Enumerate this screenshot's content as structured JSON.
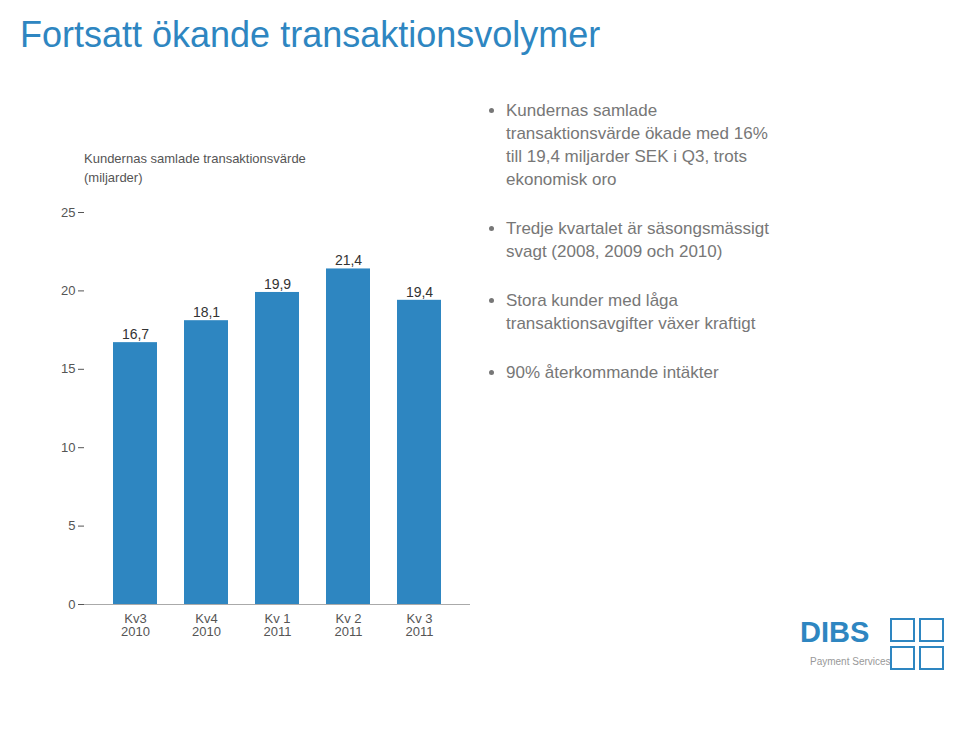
{
  "chart_data": {
    "type": "bar",
    "title": "Fortsatt ökande transaktionsvolymer",
    "subtitle": [
      "Kundernas samlade transaktionsvärde",
      "(miljarder)"
    ],
    "categories": [
      "Kv3\n2010",
      "Kv4\n2010",
      "Kv 1\n2011",
      "Kv 2\n2011",
      "Kv 3\n2011"
    ],
    "values": [
      16.7,
      18.1,
      19.9,
      21.4,
      19.4
    ],
    "value_labels": [
      "16,7",
      "18,1",
      "19,9",
      "21,4",
      "19,4"
    ],
    "data_labels": true,
    "color": "#2E86C1",
    "ylim": [
      0,
      25
    ],
    "yticks": [
      0,
      5,
      10,
      15,
      20,
      25
    ],
    "grid": false,
    "annotations": [
      "Kundernas samlade\ntransaktionsvärde ökade med 16%\ntill 19,4 miljarder SEK i Q3, trots\nekonomisk oro",
      "Tredje kvartalet är säsongsmässigt\nsvagt (2008, 2009 och 2010)",
      "Stora kunder med låga\ntransaktionsavgifter växer kraftigt",
      "90% återkommande intäkter",
      "DIBS",
      "Payment Services"
    ]
  }
}
